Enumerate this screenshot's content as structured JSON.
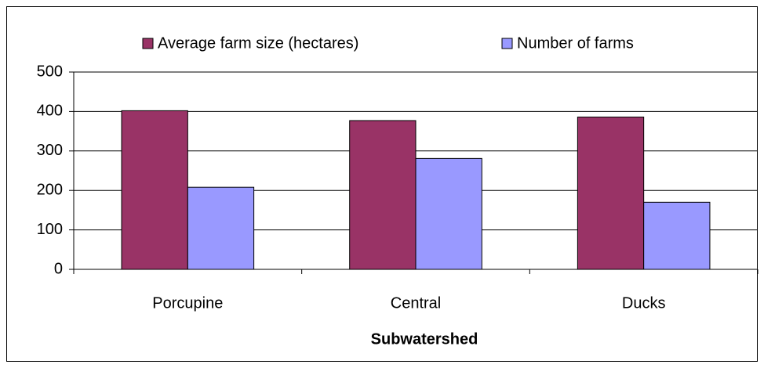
{
  "chart_data": {
    "type": "bar",
    "x_label": "Subwatershed",
    "categories": [
      "Porcupine",
      "Central",
      "Ducks"
    ],
    "series": [
      {
        "name": "Average farm size (hectares)",
        "color": "#993366",
        "values": [
          402,
          377,
          386
        ]
      },
      {
        "name": "Number of farms",
        "color": "#9999ff",
        "values": [
          208,
          281,
          170
        ]
      }
    ],
    "ylim": [
      0,
      500
    ],
    "yticks": [
      0,
      100,
      200,
      300,
      400,
      500
    ],
    "grid": true,
    "legend": "top"
  }
}
